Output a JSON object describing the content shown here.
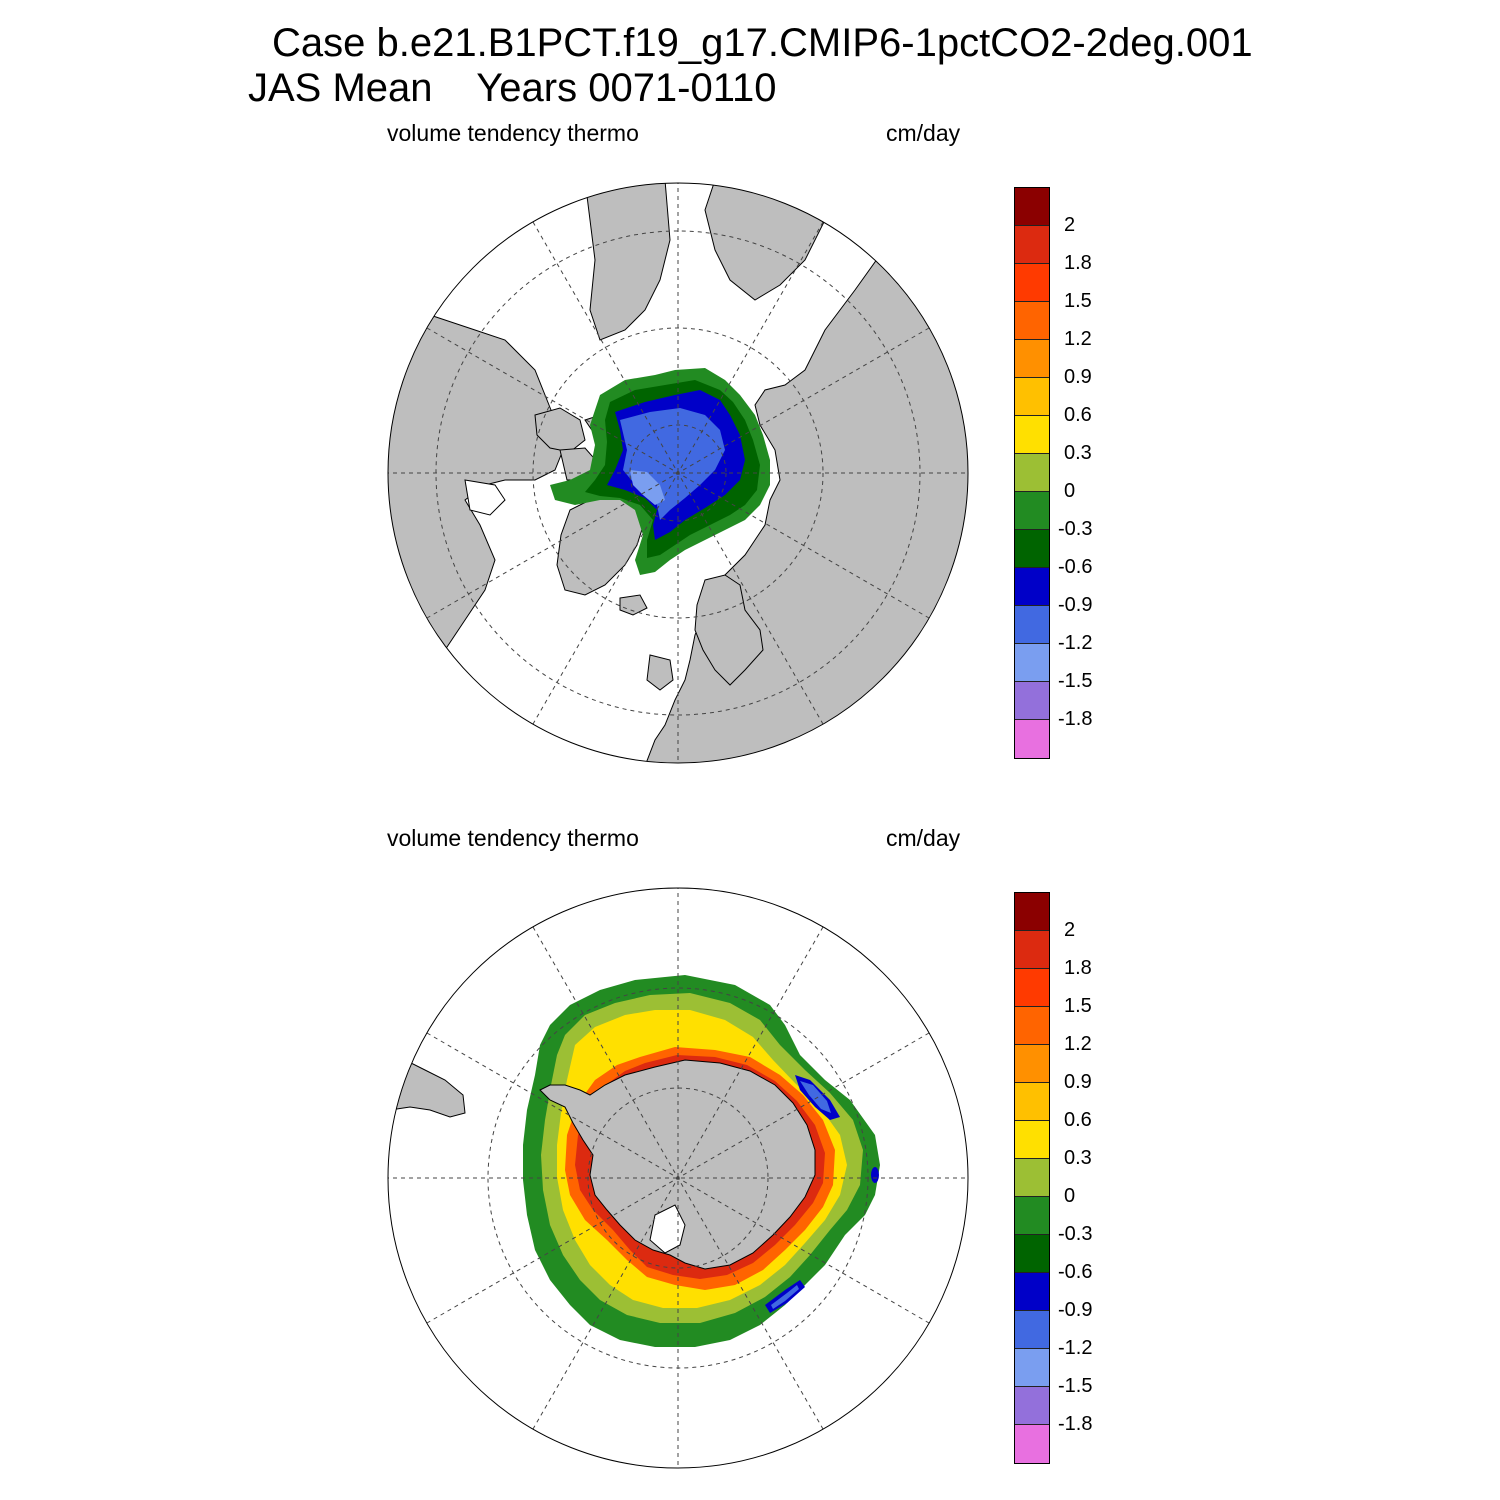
{
  "header": {
    "case_line": "Case b.e21.B1PCT.f19_g17.CMIP6-1pctCO2-2deg.001",
    "period_line": "JAS Mean    Years 0071-0110"
  },
  "panels": [
    {
      "hemisphere": "north",
      "left_label": "volume tendency thermo",
      "right_label": "cm/day"
    },
    {
      "hemisphere": "south",
      "left_label": "volume tendency thermo",
      "right_label": "cm/day"
    }
  ],
  "colorbar": {
    "levels": [
      "2",
      "1.8",
      "1.5",
      "1.2",
      "0.9",
      "0.6",
      "0.3",
      "0",
      "-0.3",
      "-0.6",
      "-0.9",
      "-1.2",
      "-1.5",
      "-1.8"
    ],
    "colors": [
      "#8b0000",
      "#dc2a10",
      "#ff3a00",
      "#ff6400",
      "#ff9000",
      "#ffc000",
      "#ffe000",
      "#9cbf34",
      "#228b22",
      "#006400",
      "#0000c8",
      "#4169e1",
      "#7a9ef0",
      "#9370db",
      "#e870e0"
    ]
  },
  "colors": {
    "land": "#bebebe",
    "ocean": "#ffffff"
  }
}
